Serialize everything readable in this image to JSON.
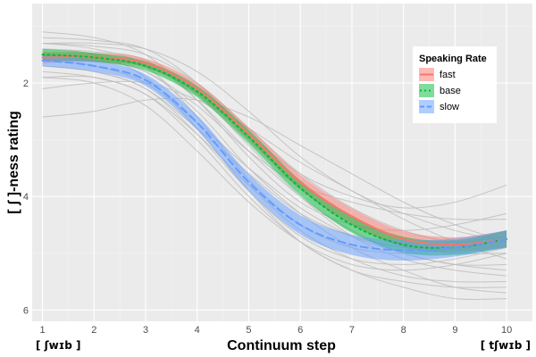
{
  "chart_data": {
    "type": "line",
    "title": "",
    "xlabel": "Continuum step",
    "ylabel": "[ ʃ ]-ness rating",
    "x_endpoint_labels": {
      "left": "[ ʃwɪb ]",
      "right": "[ tʃwɪb ]"
    },
    "x": [
      1,
      2,
      3,
      4,
      5,
      6,
      7,
      8,
      9,
      10
    ],
    "x_ticks": [
      "1",
      "2",
      "3",
      "4",
      "5",
      "6",
      "7",
      "8",
      "9",
      "10"
    ],
    "y_ticks": [
      "2",
      "4",
      "6"
    ],
    "xlim": [
      0.8,
      10.5
    ],
    "ylim": [
      6.2,
      0.6
    ],
    "y_axis_reversed": true,
    "grid": true,
    "legend": {
      "title": "Speaking Rate",
      "position": "top-right"
    },
    "series": [
      {
        "name": "fast",
        "color": "#f8766d",
        "linetype": "solid",
        "values": [
          1.55,
          1.55,
          1.65,
          2.1,
          2.9,
          3.75,
          4.35,
          4.75,
          4.85,
          4.75
        ],
        "band": [
          0.1,
          0.08,
          0.08,
          0.1,
          0.12,
          0.13,
          0.14,
          0.14,
          0.13,
          0.15
        ]
      },
      {
        "name": "base",
        "color": "#00ba38",
        "linetype": "dotted",
        "values": [
          1.5,
          1.55,
          1.7,
          2.15,
          2.95,
          3.85,
          4.5,
          4.85,
          4.9,
          4.75
        ],
        "band": [
          0.1,
          0.08,
          0.08,
          0.1,
          0.12,
          0.13,
          0.14,
          0.14,
          0.13,
          0.15
        ]
      },
      {
        "name": "slow",
        "color": "#619cff",
        "linetype": "dashed",
        "values": [
          1.6,
          1.7,
          1.95,
          2.7,
          3.75,
          4.5,
          4.85,
          4.95,
          4.9,
          4.75
        ],
        "band": [
          0.1,
          0.1,
          0.1,
          0.13,
          0.15,
          0.17,
          0.18,
          0.18,
          0.16,
          0.15
        ]
      }
    ],
    "individual_curves": [
      [
        1.3,
        1.35,
        1.5,
        2.0,
        2.8,
        3.6,
        4.2,
        4.6,
        4.8,
        4.7
      ],
      [
        1.4,
        1.45,
        1.6,
        2.3,
        3.2,
        4.0,
        4.6,
        5.0,
        5.2,
        5.3
      ],
      [
        1.5,
        1.6,
        1.8,
        2.5,
        3.5,
        4.3,
        4.9,
        5.3,
        5.6,
        5.7
      ],
      [
        1.2,
        1.25,
        1.4,
        2.0,
        2.9,
        3.6,
        4.0,
        4.2,
        4.1,
        3.8
      ],
      [
        2.1,
        2.0,
        2.0,
        2.3,
        2.8,
        3.4,
        3.9,
        4.4,
        4.8,
        5.1
      ],
      [
        1.6,
        1.6,
        1.7,
        2.2,
        3.1,
        4.0,
        4.7,
        5.1,
        5.3,
        5.4
      ],
      [
        1.7,
        1.8,
        2.1,
        2.9,
        3.9,
        4.7,
        5.1,
        5.2,
        5.1,
        4.9
      ],
      [
        1.9,
        1.9,
        2.2,
        2.9,
        3.8,
        4.6,
        5.1,
        5.4,
        5.5,
        5.5
      ],
      [
        1.3,
        1.4,
        1.7,
        2.6,
        3.7,
        4.5,
        4.9,
        5.0,
        4.9,
        4.6
      ],
      [
        1.8,
        1.9,
        2.2,
        3.0,
        4.0,
        4.8,
        5.3,
        5.5,
        5.6,
        5.6
      ],
      [
        2.6,
        2.5,
        2.3,
        2.3,
        2.6,
        3.1,
        3.6,
        4.1,
        4.5,
        4.8
      ],
      [
        1.1,
        1.2,
        1.5,
        2.3,
        3.3,
        4.1,
        4.5,
        4.6,
        4.5,
        4.3
      ],
      [
        1.4,
        1.5,
        1.9,
        2.8,
        3.9,
        4.8,
        5.3,
        5.6,
        5.8,
        5.8
      ],
      [
        1.5,
        1.6,
        1.8,
        2.4,
        3.2,
        3.8,
        4.1,
        4.3,
        4.4,
        4.4
      ],
      [
        1.6,
        1.7,
        2.0,
        2.7,
        3.5,
        4.2,
        4.7,
        5.0,
        5.2,
        5.2
      ],
      [
        1.3,
        1.3,
        1.4,
        1.8,
        2.5,
        3.3,
        3.9,
        4.3,
        4.6,
        4.8
      ],
      [
        1.7,
        1.8,
        2.1,
        2.8,
        3.6,
        4.3,
        4.7,
        4.9,
        5.0,
        5.0
      ],
      [
        1.9,
        2.0,
        2.4,
        3.2,
        4.1,
        4.8,
        5.2,
        5.3,
        5.2,
        5.0
      ]
    ]
  }
}
